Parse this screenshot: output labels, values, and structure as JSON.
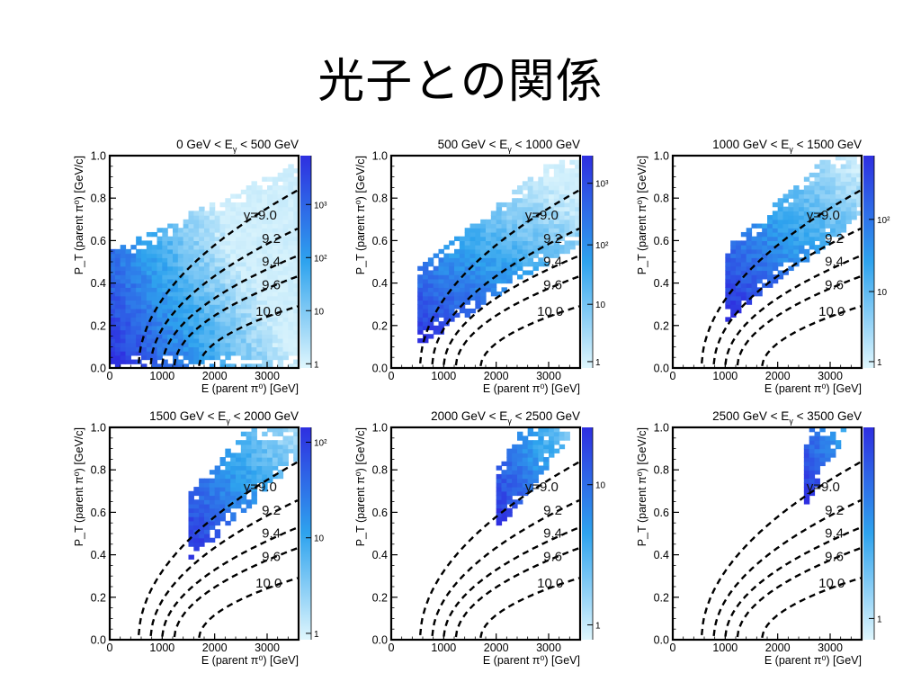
{
  "title": "光子との関係",
  "colors": {
    "low": "#dff6fd",
    "mid": "#2ea3ee",
    "high": "#2e2fe0",
    "curve": "#000000"
  },
  "chart_data": [
    {
      "type": "heatmap",
      "title": "0 GeV < E_γ < 500 GeV",
      "title_parts": [
        "0 GeV < E",
        "γ",
        " <  500 GeV"
      ],
      "xlabel": "E (parent π⁰) [GeV]",
      "ylabel": "P_T (parent π⁰) [GeV/c]",
      "xlim": [
        0,
        3600
      ],
      "ylim": [
        0,
        1.0
      ],
      "xticks": [
        0,
        1000,
        2000,
        3000
      ],
      "yticks": [
        0.0,
        0.2,
        0.4,
        0.6,
        0.8,
        1.0
      ],
      "zscale": "log",
      "colorbar_ticks": [
        "1",
        "10",
        "10²",
        "10³"
      ],
      "colorbar_tick_pos": [
        0.02,
        0.27,
        0.52,
        0.77
      ],
      "band_E": [
        0,
        3600
      ],
      "band_w": 3.2,
      "band_dy": 0.55,
      "band_pmin": 0.0,
      "curve_labels": [
        "y=9.0",
        "9.2",
        "9.4",
        "9.6",
        "10.0"
      ],
      "rapidity_curves_y": [
        9.0,
        9.2,
        9.4,
        9.6,
        10.0
      ]
    },
    {
      "type": "heatmap",
      "title": "500 GeV < E_γ < 1000 GeV",
      "title_parts": [
        "500 GeV < E",
        "γ",
        " < 1000 GeV"
      ],
      "xlabel": "E (parent π⁰) [GeV]",
      "ylabel": "P_T (parent π⁰) [GeV/c]",
      "xlim": [
        0,
        3600
      ],
      "ylim": [
        0,
        1.0
      ],
      "xticks": [
        0,
        1000,
        2000,
        3000
      ],
      "yticks": [
        0.0,
        0.2,
        0.4,
        0.6,
        0.8,
        1.0
      ],
      "zscale": "log",
      "colorbar_ticks": [
        "1",
        "10",
        "10²",
        "10³"
      ],
      "colorbar_tick_pos": [
        0.03,
        0.3,
        0.58,
        0.87
      ],
      "band_E": [
        500,
        3600
      ],
      "band_w": 0.95,
      "band_dy": 0.13,
      "band_pmin": 0.1,
      "curve_labels": [
        "y=9.0",
        "9.2",
        "9.4",
        "9.6",
        "10.0"
      ],
      "rapidity_curves_y": [
        9.0,
        9.2,
        9.4,
        9.6,
        10.0
      ]
    },
    {
      "type": "heatmap",
      "title": "1000 GeV < E_γ < 1500 GeV",
      "title_parts": [
        "1000 GeV < E",
        "γ",
        " < 1500 GeV"
      ],
      "xlabel": "E (parent π⁰) [GeV]",
      "ylabel": "P_T (parent π⁰) [GeV/c]",
      "xlim": [
        0,
        3600
      ],
      "ylim": [
        0,
        1.0
      ],
      "xticks": [
        0,
        1000,
        2000,
        3000
      ],
      "yticks": [
        0.0,
        0.2,
        0.4,
        0.6,
        0.8,
        1.0
      ],
      "zscale": "log",
      "colorbar_ticks": [
        "1",
        "10",
        "10²"
      ],
      "colorbar_tick_pos": [
        0.03,
        0.36,
        0.7
      ],
      "band_E": [
        1000,
        3600
      ],
      "band_w": 0.8,
      "band_dy": 0.09,
      "band_pmin": 0.22,
      "curve_labels": [
        "y=9.0",
        "9.2",
        "9.4",
        "9.6",
        "10.0"
      ],
      "rapidity_curves_y": [
        9.0,
        9.2,
        9.4,
        9.6,
        10.0
      ]
    },
    {
      "type": "heatmap",
      "title": "1500 GeV < E_γ < 2000 GeV",
      "title_parts": [
        "1500 GeV < E",
        "γ",
        " < 2000 GeV"
      ],
      "xlabel": "E (parent π⁰) [GeV]",
      "ylabel": "P_T (parent π⁰) [GeV/c]",
      "xlim": [
        0,
        3600
      ],
      "ylim": [
        0,
        1.0
      ],
      "xticks": [
        0,
        1000,
        2000,
        3000
      ],
      "yticks": [
        0.0,
        0.2,
        0.4,
        0.6,
        0.8,
        1.0
      ],
      "zscale": "log",
      "colorbar_ticks": [
        "1",
        "10",
        "10²"
      ],
      "colorbar_tick_pos": [
        0.03,
        0.48,
        0.93
      ],
      "band_E": [
        1500,
        3600
      ],
      "band_w": 0.75,
      "band_dy": 0.07,
      "band_pmin": 0.36,
      "curve_labels": [
        "y=9.0",
        "9.2",
        "9.4",
        "9.6",
        "10.0"
      ],
      "rapidity_curves_y": [
        9.0,
        9.2,
        9.4,
        9.6,
        10.0
      ]
    },
    {
      "type": "heatmap",
      "title": "2000 GeV < E_γ < 2500 GeV",
      "title_parts": [
        "2000 GeV < E",
        "γ",
        " < 2500 GeV"
      ],
      "xlabel": "E (parent π⁰) [GeV]",
      "ylabel": "P_T (parent π⁰) [GeV/c]",
      "xlim": [
        0,
        3600
      ],
      "ylim": [
        0,
        1.0
      ],
      "xticks": [
        0,
        1000,
        2000,
        3000
      ],
      "yticks": [
        0.0,
        0.2,
        0.4,
        0.6,
        0.8,
        1.0
      ],
      "zscale": "log",
      "colorbar_ticks": [
        "1",
        "10"
      ],
      "colorbar_tick_pos": [
        0.07,
        0.73
      ],
      "band_E": [
        2000,
        3500
      ],
      "band_w": 0.7,
      "band_dy": 0.06,
      "band_pmin": 0.5,
      "curve_labels": [
        "y=9.0",
        "9.2",
        "9.4",
        "9.6",
        "10.0"
      ],
      "rapidity_curves_y": [
        9.0,
        9.2,
        9.4,
        9.6,
        10.0
      ]
    },
    {
      "type": "heatmap",
      "title": "2500 GeV < E_γ < 3500 GeV",
      "title_parts": [
        "2500 GeV < E",
        "γ",
        " < 3500 GeV"
      ],
      "xlabel": "E (parent π⁰) [GeV]",
      "ylabel": "P_T (parent π⁰) [GeV/c]",
      "xlim": [
        0,
        3600
      ],
      "ylim": [
        0,
        1.0
      ],
      "xticks": [
        0,
        1000,
        2000,
        3000
      ],
      "yticks": [
        0.0,
        0.2,
        0.4,
        0.6,
        0.8,
        1.0
      ],
      "zscale": "log",
      "colorbar_ticks": [
        "1"
      ],
      "colorbar_tick_pos": [
        0.1
      ],
      "band_E": [
        2500,
        3600
      ],
      "band_w": 0.75,
      "band_dy": 0.05,
      "band_pmin": 0.62,
      "curve_labels": [
        "y=9.0",
        "9.2",
        "9.4",
        "9.6",
        "10.0"
      ],
      "rapidity_curves_y": [
        9.0,
        9.2,
        9.4,
        9.6,
        10.0
      ]
    }
  ]
}
